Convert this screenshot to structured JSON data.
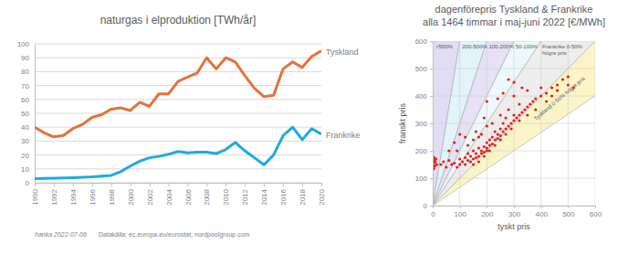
{
  "chart_data": [
    {
      "type": "line",
      "title": "naturgas i elproduktion [TWh/år]",
      "x": [
        1990,
        1991,
        1992,
        1993,
        1994,
        1995,
        1996,
        1997,
        1998,
        1999,
        2000,
        2001,
        2002,
        2003,
        2004,
        2005,
        2006,
        2007,
        2008,
        2009,
        2010,
        2011,
        2012,
        2013,
        2014,
        2015,
        2016,
        2017,
        2018,
        2019,
        2020
      ],
      "series": [
        {
          "name": "Tyskland",
          "color": "#e8703a",
          "values": [
            40,
            36,
            33,
            34,
            39,
            42,
            47,
            49,
            53,
            54,
            52,
            58,
            55,
            64,
            64,
            73,
            76,
            79,
            90,
            82,
            90,
            87,
            77,
            68,
            62,
            63,
            82,
            87,
            83,
            91,
            95
          ]
        },
        {
          "name": "Frankrike",
          "color": "#1eaadf",
          "values": [
            3,
            3.2,
            3.3,
            3.5,
            3.7,
            4,
            4.2,
            4.8,
            5.3,
            8,
            12,
            15.5,
            18,
            19,
            20.5,
            22.5,
            21.5,
            22,
            22,
            21,
            24,
            29,
            23,
            18,
            13,
            20,
            34,
            40,
            31,
            39,
            35
          ]
        }
      ],
      "xlim": [
        1990,
        2020
      ],
      "xticks": [
        1990,
        1992,
        1994,
        1996,
        1998,
        2000,
        2002,
        2004,
        2006,
        2008,
        2010,
        2012,
        2014,
        2016,
        2018,
        2020
      ],
      "ylim": [
        0,
        100
      ],
      "yticks": [
        0,
        10,
        20,
        30,
        40,
        50,
        60,
        70,
        80,
        90,
        100
      ],
      "grid": true
    },
    {
      "type": "scatter",
      "title": "dagenförepris Tyskland & Frankrike",
      "subtitle": "alla 1464 timmar i maj-juni 2022 [€/MWh]",
      "x_label": "tyskt pris",
      "y_label": "franskt pris",
      "color": "#e0201b",
      "x": [
        0,
        0,
        0,
        2,
        3,
        5,
        5,
        8,
        10,
        0,
        4,
        12,
        15,
        30,
        40,
        50,
        60,
        70,
        80,
        90,
        100,
        100,
        110,
        120,
        120,
        130,
        130,
        140,
        140,
        150,
        150,
        150,
        160,
        160,
        170,
        170,
        180,
        180,
        180,
        190,
        190,
        200,
        200,
        200,
        200,
        210,
        210,
        220,
        220,
        220,
        230,
        230,
        240,
        240,
        250,
        250,
        250,
        260,
        260,
        270,
        270,
        280,
        280,
        290,
        300,
        300,
        300,
        310,
        320,
        320,
        330,
        340,
        350,
        350,
        360,
        370,
        380,
        400,
        400,
        420,
        440,
        460,
        480,
        500,
        520,
        500,
        100,
        120,
        160,
        200,
        240,
        280,
        90,
        80,
        60,
        130,
        170,
        190,
        260,
        300,
        330,
        150,
        170,
        190,
        210,
        230,
        250,
        270,
        290,
        320,
        350,
        380,
        420,
        440,
        460
      ],
      "values": [
        150,
        160,
        170,
        140,
        155,
        165,
        175,
        145,
        160,
        180,
        135,
        170,
        150,
        150,
        160,
        140,
        165,
        150,
        155,
        140,
        150,
        170,
        160,
        150,
        175,
        165,
        190,
        160,
        180,
        170,
        200,
        240,
        175,
        190,
        180,
        210,
        190,
        200,
        260,
        195,
        215,
        200,
        210,
        230,
        290,
        220,
        240,
        225,
        250,
        300,
        240,
        270,
        245,
        260,
        255,
        280,
        330,
        270,
        300,
        280,
        320,
        290,
        350,
        300,
        310,
        330,
        400,
        320,
        330,
        370,
        340,
        350,
        360,
        420,
        370,
        380,
        390,
        400,
        430,
        410,
        430,
        440,
        460,
        440,
        430,
        470,
        260,
        250,
        270,
        380,
        390,
        460,
        200,
        230,
        200,
        220,
        250,
        320,
        410,
        450,
        430,
        150,
        160,
        180,
        200,
        220,
        240,
        260,
        280,
        310,
        330,
        350,
        380,
        400,
        420
      ],
      "sectors": [
        {
          "label": ">500%",
          "slope_min": 6,
          "slope_max": null,
          "color": "#e2ddf5"
        },
        {
          "label": "200-500%",
          "slope_min": 3,
          "slope_max": 6,
          "color": "#e2f3fa"
        },
        {
          "label": "100-200%",
          "slope_min": 2,
          "slope_max": 3,
          "color": "#e6e1f6"
        },
        {
          "label": "50-100%",
          "slope_min": 1.5,
          "slope_max": 2,
          "color": "#ecf8fb"
        },
        {
          "label": "Frankrike 0-50% högre pris",
          "slope_min": 1,
          "slope_max": 1.5,
          "color": "#ededed"
        },
        {
          "label": "Tyskland 0-50% högre pris",
          "slope_min": 0.667,
          "slope_max": 1,
          "color": "#fbf4c6"
        }
      ],
      "xlim": [
        0,
        600
      ],
      "xticks": [
        0,
        100,
        200,
        300,
        400,
        500,
        600
      ],
      "ylim": [
        0,
        600
      ],
      "yticks": [
        0,
        100,
        200,
        300,
        400,
        500,
        600
      ],
      "grid": true
    }
  ],
  "footer": {
    "author": "hanka 2022-07-06",
    "source": "Datakälla: ec.europa.eu/eurostat, nordpoolgroup.com"
  }
}
